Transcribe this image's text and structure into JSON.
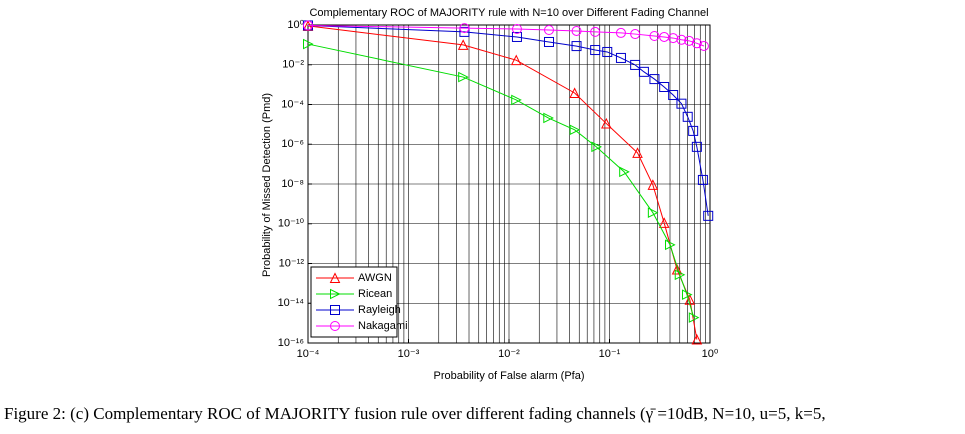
{
  "chart_data": {
    "type": "line",
    "title": "Complementary ROC of MAJORITY rule with N=10 over Different Fading Channel",
    "xlabel": "Probability of False alarm (Pfa)",
    "ylabel": "Probability of Missed Detection (Pmd)",
    "xscale": "log",
    "yscale": "log",
    "xlim": [
      0.0001,
      1
    ],
    "ylim": [
      1e-16,
      1
    ],
    "xticks": [
      {
        "value": 0.0001,
        "label": "10⁻⁴"
      },
      {
        "value": 0.001,
        "label": "10⁻³"
      },
      {
        "value": 0.01,
        "label": "10⁻²"
      },
      {
        "value": 0.1,
        "label": "10⁻¹"
      },
      {
        "value": 1,
        "label": "10⁰"
      }
    ],
    "yticks": [
      {
        "value": 1,
        "label": "10⁰"
      },
      {
        "value": 0.01,
        "label": "10⁻²"
      },
      {
        "value": 0.0001,
        "label": "10⁻⁴"
      },
      {
        "value": 1e-06,
        "label": "10⁻⁶"
      },
      {
        "value": 1e-08,
        "label": "10⁻⁸"
      },
      {
        "value": 1e-10,
        "label": "10⁻¹⁰"
      },
      {
        "value": 1e-12,
        "label": "10⁻¹²"
      },
      {
        "value": 1e-14,
        "label": "10⁻¹⁴"
      },
      {
        "value": 1e-16,
        "label": "10⁻¹⁶"
      }
    ],
    "grid": true,
    "minor_grid": true,
    "legend": "lower left",
    "series": [
      {
        "name": "AWGN",
        "color": "#ff0000",
        "marker": "triangle-up",
        "x": [
          0.0001,
          0.0035,
          0.0118,
          0.045,
          0.093,
          0.19,
          0.27,
          0.35,
          0.47,
          0.63,
          0.74
        ],
        "values": [
          0.9,
          0.1,
          0.017,
          0.00038,
          1.1e-05,
          3.7e-07,
          9e-09,
          1.1e-10,
          5e-13,
          1.5e-14,
          1.5e-16
        ]
      },
      {
        "name": "Ricean",
        "color": "#00dd00",
        "marker": "triangle-right",
        "x": [
          0.0001,
          0.0035,
          0.0118,
          0.0246,
          0.045,
          0.074,
          0.14,
          0.27,
          0.4,
          0.5,
          0.59,
          0.69
        ],
        "values": [
          0.11,
          0.0024,
          0.00017,
          2.1e-05,
          5.3e-06,
          7.4e-07,
          4.1e-08,
          3.6e-10,
          8.7e-12,
          2.7e-13,
          2.7e-14,
          1.9e-15
        ]
      },
      {
        "name": "Rayleigh",
        "color": "#0000cc",
        "marker": "square",
        "x": [
          0.0001,
          0.0036,
          0.012,
          0.025,
          0.047,
          0.072,
          0.095,
          0.13,
          0.18,
          0.22,
          0.28,
          0.35,
          0.43,
          0.52,
          0.6,
          0.68,
          0.74,
          0.85,
          0.96
        ],
        "values": [
          0.95,
          0.45,
          0.25,
          0.14,
          0.087,
          0.055,
          0.044,
          0.022,
          0.0098,
          0.0044,
          0.0019,
          0.00076,
          0.0003,
          0.00011,
          2.4e-05,
          4.7e-06,
          7.4e-07,
          1.6e-08,
          2.5e-10
        ]
      },
      {
        "name": "Nakagami",
        "color": "#ff00ff",
        "marker": "circle",
        "x": [
          0.0001,
          0.0036,
          0.012,
          0.025,
          0.047,
          0.072,
          0.13,
          0.18,
          0.28,
          0.35,
          0.43,
          0.52,
          0.62,
          0.74,
          0.87
        ],
        "values": [
          0.95,
          0.7,
          0.63,
          0.56,
          0.5,
          0.45,
          0.4,
          0.35,
          0.28,
          0.25,
          0.22,
          0.18,
          0.16,
          0.12,
          0.088
        ]
      }
    ]
  },
  "caption": "Figure 2: (c) Complementary ROC of MAJORITY fusion rule over different fading channels (γ̄ =10dB, N=10, u=5, k=5,"
}
